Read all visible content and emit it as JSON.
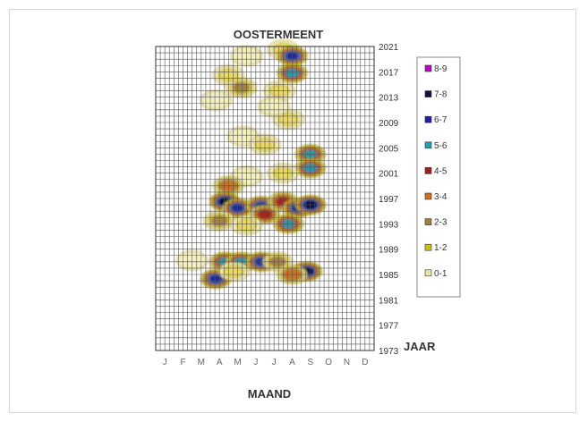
{
  "chart_data": {
    "type": "heatmap",
    "title": "OOSTERMEENT",
    "xlabel": "MAAND",
    "ylabel": "JAAR",
    "x_tick_labels": [
      "J",
      "F",
      "M",
      "A",
      "M",
      "J",
      "J",
      "A",
      "S",
      "O",
      "N",
      "D"
    ],
    "y_tick_labels": [
      "2021",
      "2017",
      "2013",
      "2009",
      "2005",
      "2001",
      "1997",
      "1993",
      "1989",
      "1985",
      "1981",
      "1977",
      "1973"
    ],
    "ylim": [
      1973,
      2021
    ],
    "legend_position": "right",
    "legend": [
      {
        "label": "8-9",
        "color": "#c000c0"
      },
      {
        "label": "7-8",
        "color": "#101040"
      },
      {
        "label": "6-7",
        "color": "#2020a0"
      },
      {
        "label": "5-6",
        "color": "#20a0b0"
      },
      {
        "label": "4-5",
        "color": "#a02020"
      },
      {
        "label": "3-4",
        "color": "#d07020"
      },
      {
        "label": "2-3",
        "color": "#a08040"
      },
      {
        "label": "1-2",
        "color": "#c8c000"
      },
      {
        "label": "0-1",
        "color": "#e8e4a0"
      }
    ],
    "blobs": [
      {
        "month": 5.5,
        "year": 2019.5,
        "level": 1
      },
      {
        "month": 7.5,
        "year": 2020.5,
        "level": 2
      },
      {
        "month": 8.0,
        "year": 2019.5,
        "level": 7
      },
      {
        "month": 8.0,
        "year": 2016.8,
        "level": 6
      },
      {
        "month": 4.5,
        "year": 2016.5,
        "level": 2
      },
      {
        "month": 5.2,
        "year": 2014.5,
        "level": 3
      },
      {
        "month": 3.8,
        "year": 2012.5,
        "level": 1
      },
      {
        "month": 7.3,
        "year": 2014.0,
        "level": 2
      },
      {
        "month": 7.8,
        "year": 2009.5,
        "level": 2
      },
      {
        "month": 7.0,
        "year": 2011.5,
        "level": 1
      },
      {
        "month": 5.3,
        "year": 2006.8,
        "level": 1
      },
      {
        "month": 6.5,
        "year": 2005.5,
        "level": 2
      },
      {
        "month": 9.0,
        "year": 2004.0,
        "level": 6
      },
      {
        "month": 9.0,
        "year": 2001.8,
        "level": 6
      },
      {
        "month": 7.5,
        "year": 2001.0,
        "level": 2
      },
      {
        "month": 5.5,
        "year": 2000.5,
        "level": 1
      },
      {
        "month": 4.5,
        "year": 1999.0,
        "level": 4
      },
      {
        "month": 4.3,
        "year": 1996.5,
        "level": 8
      },
      {
        "month": 5.0,
        "year": 1995.5,
        "level": 7
      },
      {
        "month": 6.3,
        "year": 1995.8,
        "level": 7
      },
      {
        "month": 6.5,
        "year": 1994.5,
        "level": 5
      },
      {
        "month": 7.5,
        "year": 1996.5,
        "level": 5
      },
      {
        "month": 8.3,
        "year": 1995.5,
        "level": 7
      },
      {
        "month": 9.0,
        "year": 1996.0,
        "level": 8
      },
      {
        "month": 7.8,
        "year": 1993.0,
        "level": 6
      },
      {
        "month": 4.0,
        "year": 1993.5,
        "level": 3
      },
      {
        "month": 5.5,
        "year": 1992.8,
        "level": 2
      },
      {
        "month": 4.3,
        "year": 1987.0,
        "level": 6
      },
      {
        "month": 5.2,
        "year": 1987.0,
        "level": 6
      },
      {
        "month": 6.3,
        "year": 1987.0,
        "level": 7
      },
      {
        "month": 7.2,
        "year": 1987.0,
        "level": 3
      },
      {
        "month": 8.8,
        "year": 1985.5,
        "level": 8
      },
      {
        "month": 8.0,
        "year": 1985.0,
        "level": 4
      },
      {
        "month": 3.8,
        "year": 1984.3,
        "level": 7
      },
      {
        "month": 4.8,
        "year": 1985.5,
        "level": 2
      },
      {
        "month": 2.5,
        "year": 1987.2,
        "level": 1
      }
    ]
  }
}
